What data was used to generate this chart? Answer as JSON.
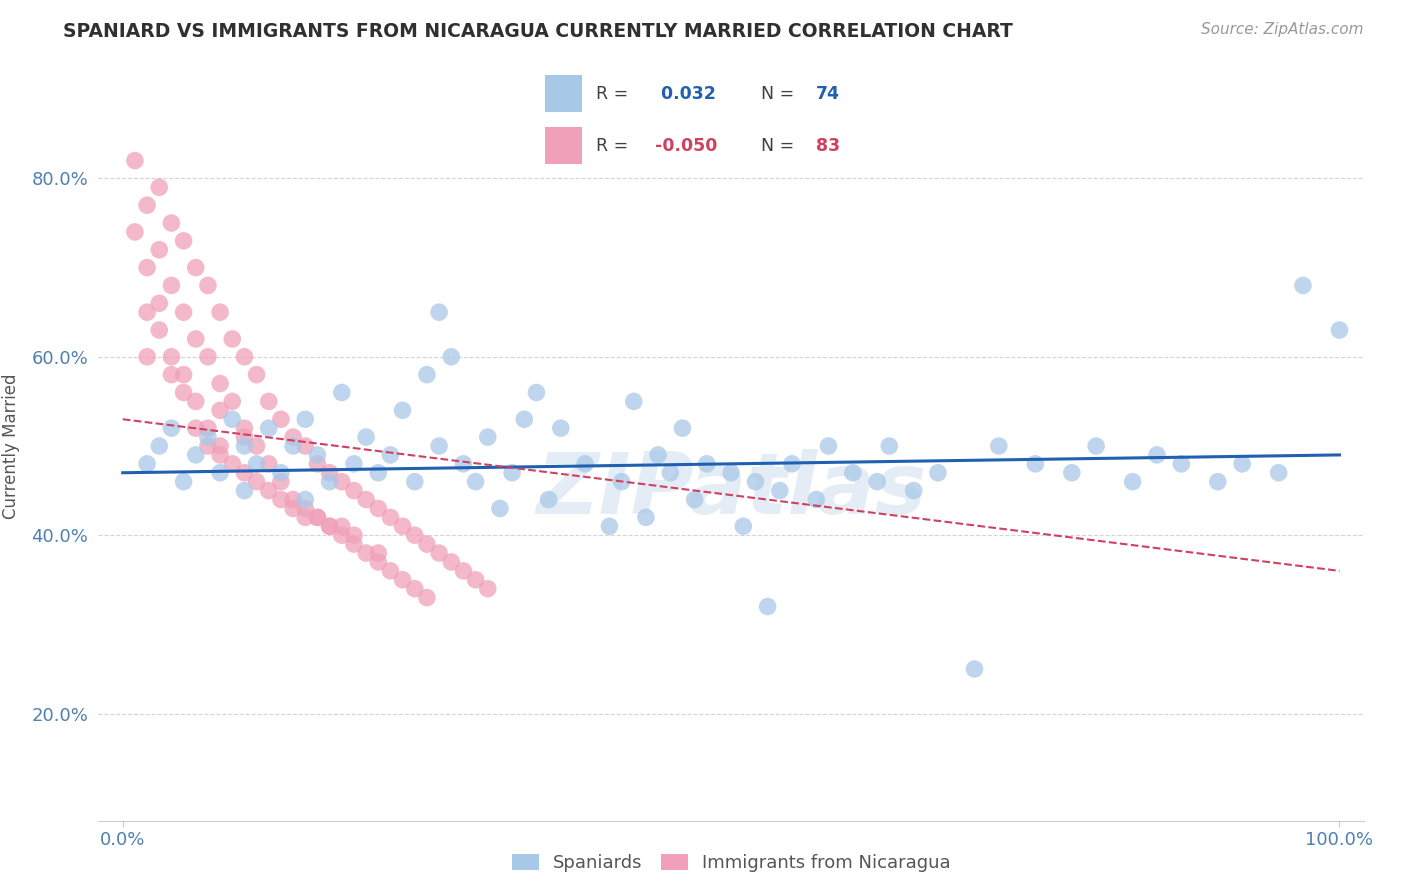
{
  "title": "SPANIARD VS IMMIGRANTS FROM NICARAGUA CURRENTLY MARRIED CORRELATION CHART",
  "source_text": "Source: ZipAtlas.com",
  "ylabel": "Currently Married",
  "xlim": [
    -0.02,
    1.02
  ],
  "ylim": [
    0.08,
    0.92
  ],
  "xtick_positions": [
    0.0,
    1.0
  ],
  "xtick_labels": [
    "0.0%",
    "100.0%"
  ],
  "ytick_positions": [
    0.2,
    0.4,
    0.6,
    0.8
  ],
  "ytick_labels": [
    "20.0%",
    "40.0%",
    "60.0%",
    "80.0%"
  ],
  "legend_r_blue": " 0.032",
  "legend_n_blue": "74",
  "legend_r_pink": "-0.050",
  "legend_n_pink": "83",
  "blue_color": "#a8c8e8",
  "pink_color": "#f0a0b8",
  "blue_line_color": "#2060b0",
  "pink_line_color": "#d04060",
  "watermark": "ZIPatlas",
  "background_color": "#ffffff",
  "grid_color": "#d0d0d0",
  "title_color": "#303030",
  "axis_label_color": "#5080b0",
  "tick_color": "#5080b0",
  "blue_scatter_x": [
    0.02,
    0.03,
    0.04,
    0.05,
    0.06,
    0.07,
    0.08,
    0.09,
    0.1,
    0.1,
    0.11,
    0.12,
    0.13,
    0.14,
    0.15,
    0.15,
    0.16,
    0.17,
    0.18,
    0.19,
    0.2,
    0.21,
    0.22,
    0.23,
    0.24,
    0.25,
    0.26,
    0.27,
    0.28,
    0.29,
    0.3,
    0.31,
    0.32,
    0.33,
    0.35,
    0.36,
    0.38,
    0.4,
    0.41,
    0.42,
    0.43,
    0.44,
    0.45,
    0.46,
    0.47,
    0.48,
    0.5,
    0.51,
    0.52,
    0.53,
    0.54,
    0.55,
    0.57,
    0.58,
    0.6,
    0.62,
    0.63,
    0.65,
    0.67,
    0.7,
    0.72,
    0.75,
    0.78,
    0.8,
    0.83,
    0.85,
    0.87,
    0.9,
    0.92,
    0.95,
    0.97,
    1.0,
    0.26,
    0.34
  ],
  "blue_scatter_y": [
    0.48,
    0.5,
    0.52,
    0.46,
    0.49,
    0.51,
    0.47,
    0.53,
    0.5,
    0.45,
    0.48,
    0.52,
    0.47,
    0.5,
    0.53,
    0.44,
    0.49,
    0.46,
    0.56,
    0.48,
    0.51,
    0.47,
    0.49,
    0.54,
    0.46,
    0.58,
    0.5,
    0.6,
    0.48,
    0.46,
    0.51,
    0.43,
    0.47,
    0.53,
    0.44,
    0.52,
    0.48,
    0.41,
    0.46,
    0.55,
    0.42,
    0.49,
    0.47,
    0.52,
    0.44,
    0.48,
    0.47,
    0.41,
    0.46,
    0.32,
    0.45,
    0.48,
    0.44,
    0.5,
    0.47,
    0.46,
    0.5,
    0.45,
    0.47,
    0.25,
    0.5,
    0.48,
    0.47,
    0.5,
    0.46,
    0.49,
    0.48,
    0.46,
    0.48,
    0.47,
    0.68,
    0.63,
    0.65,
    0.56
  ],
  "pink_scatter_x": [
    0.01,
    0.01,
    0.02,
    0.02,
    0.02,
    0.03,
    0.03,
    0.03,
    0.04,
    0.04,
    0.04,
    0.05,
    0.05,
    0.05,
    0.06,
    0.06,
    0.06,
    0.07,
    0.07,
    0.07,
    0.08,
    0.08,
    0.08,
    0.09,
    0.09,
    0.1,
    0.1,
    0.11,
    0.11,
    0.12,
    0.12,
    0.13,
    0.13,
    0.14,
    0.14,
    0.15,
    0.15,
    0.16,
    0.16,
    0.17,
    0.17,
    0.18,
    0.18,
    0.19,
    0.19,
    0.2,
    0.2,
    0.21,
    0.21,
    0.22,
    0.22,
    0.23,
    0.23,
    0.24,
    0.24,
    0.25,
    0.25,
    0.26,
    0.27,
    0.28,
    0.29,
    0.3,
    0.1,
    0.12,
    0.14,
    0.16,
    0.18,
    0.08,
    0.09,
    0.11,
    0.13,
    0.15,
    0.17,
    0.19,
    0.21,
    0.06,
    0.07,
    0.04,
    0.05,
    0.03,
    0.02,
    0.08,
    0.1
  ],
  "pink_scatter_y": [
    0.82,
    0.74,
    0.77,
    0.7,
    0.65,
    0.79,
    0.72,
    0.66,
    0.75,
    0.68,
    0.6,
    0.73,
    0.65,
    0.58,
    0.7,
    0.62,
    0.55,
    0.68,
    0.6,
    0.52,
    0.65,
    0.57,
    0.5,
    0.62,
    0.55,
    0.6,
    0.52,
    0.58,
    0.5,
    0.55,
    0.48,
    0.53,
    0.46,
    0.51,
    0.44,
    0.5,
    0.43,
    0.48,
    0.42,
    0.47,
    0.41,
    0.46,
    0.4,
    0.45,
    0.39,
    0.44,
    0.38,
    0.43,
    0.37,
    0.42,
    0.36,
    0.41,
    0.35,
    0.4,
    0.34,
    0.39,
    0.33,
    0.38,
    0.37,
    0.36,
    0.35,
    0.34,
    0.47,
    0.45,
    0.43,
    0.42,
    0.41,
    0.49,
    0.48,
    0.46,
    0.44,
    0.42,
    0.41,
    0.4,
    0.38,
    0.52,
    0.5,
    0.58,
    0.56,
    0.63,
    0.6,
    0.54,
    0.51
  ],
  "blue_trend_x0": 0.0,
  "blue_trend_x1": 1.0,
  "blue_trend_y0": 0.47,
  "blue_trend_y1": 0.49,
  "pink_trend_x0": 0.0,
  "pink_trend_x1": 1.0,
  "pink_trend_y0": 0.53,
  "pink_trend_y1": 0.36
}
